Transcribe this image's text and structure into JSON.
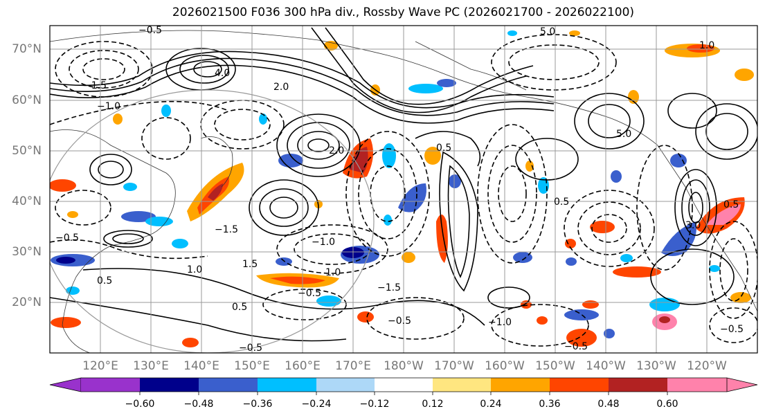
{
  "title": "2026021500 F036 300 hPa div., Rossby Wave PC (2026021700 - 2026022100)",
  "lat_labels": [
    "70°N",
    "60°N",
    "50°N",
    "40°N",
    "30°N",
    "20°N"
  ],
  "lon_labels": [
    "120°E",
    "130°E",
    "140°E",
    "150°E",
    "160°E",
    "170°E",
    "180°W",
    "170°W",
    "160°W",
    "150°W",
    "140°W",
    "130°W",
    "120°W"
  ],
  "colorbar": {
    "ticks": [
      "−0.60",
      "−0.48",
      "−0.36",
      "−0.24",
      "−0.12",
      "0.12",
      "0.24",
      "0.36",
      "0.48",
      "0.60"
    ],
    "colors": [
      "#9932cc",
      "#00008b",
      "#3a5fcd",
      "#00bfff",
      "#add8f7",
      "#ffffff",
      "#ffe680",
      "#ffa500",
      "#ff4500",
      "#b22222",
      "#ff82ab"
    ]
  },
  "contour_labels": [
    "0.5",
    "1.0",
    "1.5",
    "2.0",
    "3.0",
    "4.0",
    "5.0",
    "−0.5",
    "−1.0",
    "−1.5"
  ],
  "colors": {
    "frame": "#000000",
    "grid": "#999999",
    "tick_label": "#777777"
  }
}
